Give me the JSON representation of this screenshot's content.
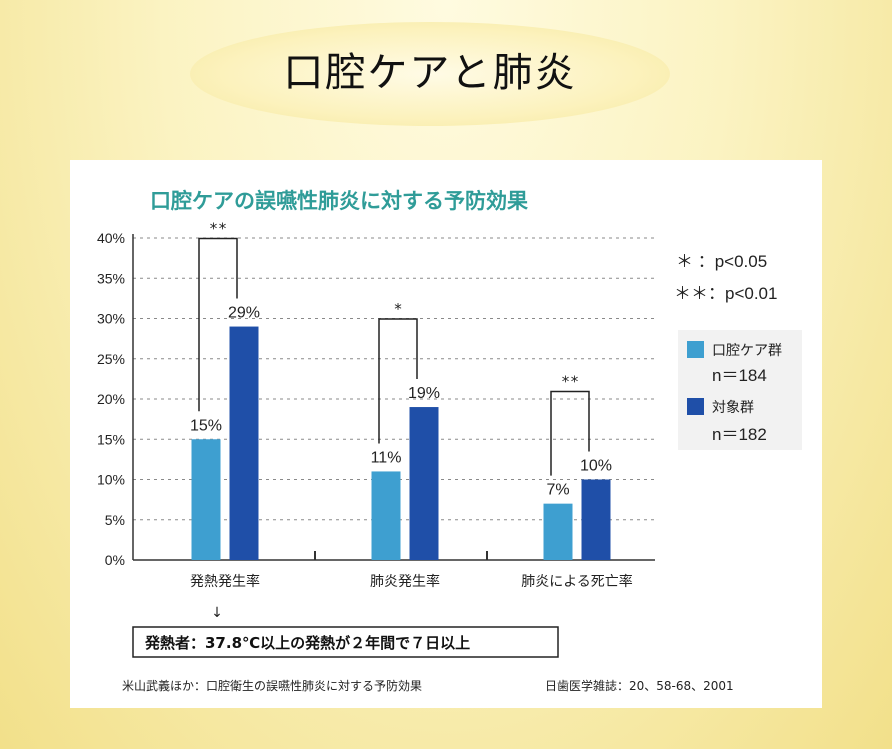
{
  "slide": {
    "title": "口腔ケアと肺炎"
  },
  "colors": {
    "oral_care": "#3e9fd0",
    "control": "#1f4fa8",
    "chart_title": "#2f9c98"
  },
  "chart_data": {
    "type": "bar",
    "title": "口腔ケアの誤嚥性肺炎に対する予防効果",
    "categories": [
      "発熱発生率",
      "肺炎発生率",
      "肺炎による死亡率"
    ],
    "series": [
      {
        "name": "口腔ケア群",
        "n_label": "n＝184",
        "values": [
          15,
          11,
          7
        ]
      },
      {
        "name": "対象群",
        "n_label": "n＝182",
        "values": [
          29,
          19,
          10
        ]
      }
    ],
    "value_labels": [
      [
        "15%",
        "11%",
        "7%"
      ],
      [
        "29%",
        "19%",
        "10%"
      ]
    ],
    "significance": [
      "**",
      "*",
      "**"
    ],
    "ylim": [
      0,
      40
    ],
    "yticks": [
      "0%",
      "5%",
      "10%",
      "15%",
      "20%",
      "25%",
      "30%",
      "35%",
      "40%"
    ],
    "grid": true,
    "legend_position": "right",
    "pvalue_legend": [
      "＊ ：p<0.05",
      "＊＊：p<0.01"
    ],
    "arrow_glyph": "↓",
    "note": "発熱者：37.8℃以上の発熱が２年間で７日以上",
    "source_left": "米山武義ほか：口腔衛生の誤嚥性肺炎に対する予防効果",
    "source_right": "日歯医学雑誌：20、58-68、2001"
  }
}
